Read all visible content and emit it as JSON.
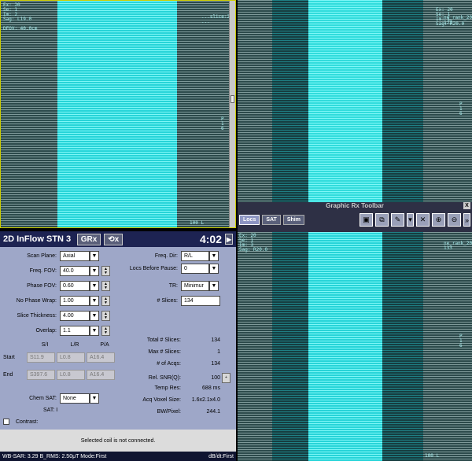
{
  "viewport_tl": {
    "overlay_tl": "Ex: 20\nSe: 1\nIm: 2\nSag: L19.0\n\nDFOV: 40.0cm",
    "overlay_tr": "...slice:20\n...",
    "overlay_r": "P\n1\n6",
    "overlay_br": "100 L",
    "overlay_bl": ""
  },
  "viewport_tr": {
    "overlay_tl": "Ex: 20\nSe: 1\nIm: 1\nSag: R20.0",
    "overlay_tr": "ne_rank_20\n133",
    "overlay_r": "P\n1\n6"
  },
  "viewport_br": {
    "overlay_tl": "Ex: 20\nSe: 1\nIm: 3\nSag: R20.0",
    "overlay_tr": "ne_rank_20\n133",
    "overlay_r": "P\n1\n6",
    "overlay_br": "100 L"
  },
  "toolbar": {
    "title": "Graphic Rx Toolbar",
    "tabs": [
      "Locs",
      "SAT",
      "Shim"
    ],
    "close": "X"
  },
  "panel": {
    "title": "2D InFlow STN 3",
    "grx": "GRx",
    "time": "4:02",
    "scan_plane": {
      "label": "Scan Plane:",
      "value": "Axial"
    },
    "freq_fov": {
      "label": "Freq. FOV:",
      "value": "40.0"
    },
    "phase_fov": {
      "label": "Phase FOV:",
      "value": "0.60"
    },
    "no_phase_wrap": {
      "label": "No Phase Wrap:",
      "value": "1.00"
    },
    "slice_thickness": {
      "label": "Slice Thickness:",
      "value": "4.00"
    },
    "overlap": {
      "label": "Overlap:",
      "value": "1.1"
    },
    "freq_dir": {
      "label": "Freq. Dir:",
      "value": "R/L"
    },
    "locs_before_pause": {
      "label": "Locs Before Pause:",
      "value": "0"
    },
    "tr": {
      "label": "TR:",
      "value": "Minimur"
    },
    "num_slices": {
      "label": "# Slices:",
      "value": "134"
    },
    "coord_headers": [
      "S/I",
      "L/R",
      "P/A"
    ],
    "start": {
      "label": "Start",
      "values": [
        "S11.9",
        "L0.8",
        "A16.4"
      ]
    },
    "end": {
      "label": "End",
      "values": [
        "S397.6",
        "L0.8",
        "A16.4"
      ]
    },
    "stats": [
      {
        "label": "Total # Slices:",
        "value": "134"
      },
      {
        "label": "Max # Slices:",
        "value": "1"
      },
      {
        "label": "# of Acqs:",
        "value": "134"
      },
      {
        "label": "Rel. SNR(Q):",
        "value": "100"
      },
      {
        "label": "Temp Res:",
        "value": "688 ms"
      },
      {
        "label": "Acq Voxel Size:",
        "value": "1.6x2.1x4.0"
      },
      {
        "label": "BW/Pixel:",
        "value": "244.1"
      }
    ],
    "chem_sat": {
      "label": "Chem SAT:",
      "value": "None"
    },
    "sat": "SAT: I",
    "contrast": "Contrast:",
    "message": "Selected coil is not connected."
  },
  "status": {
    "left": "WB-SAR: 3.29  B_RMS: 2.50μT  Mode:First",
    "right": "dB/dt:First"
  }
}
